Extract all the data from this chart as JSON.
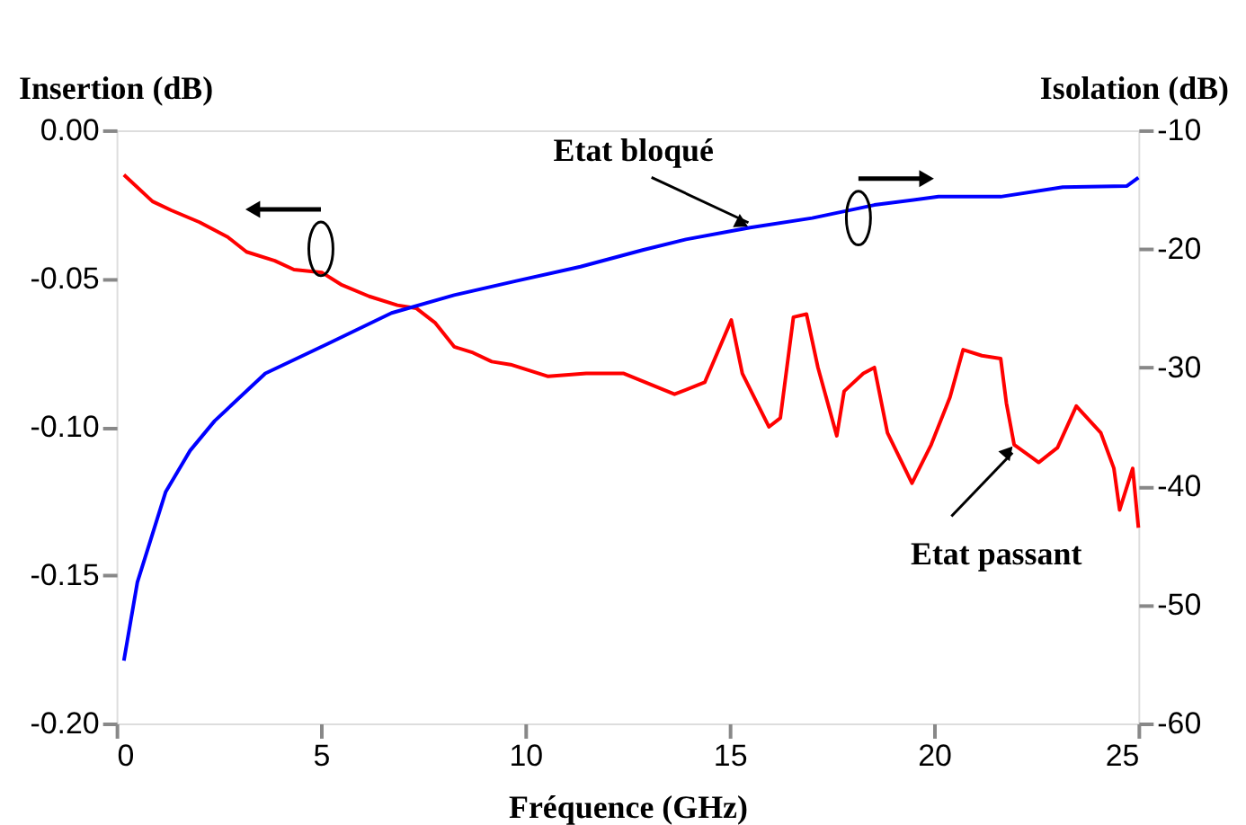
{
  "chart_data": {
    "type": "line",
    "xlabel": "Fréquence (GHz)",
    "ylabel": "Insertion (dB)",
    "y2label": "Isolation (dB)",
    "xlim": [
      0,
      25
    ],
    "xticks": [
      0,
      5,
      10,
      15,
      20,
      25
    ],
    "ylim": [
      -0.2,
      0.0
    ],
    "yticks": [
      {
        "value": 0.0,
        "label": "0.00"
      },
      {
        "value": -0.05,
        "label": "-0.05"
      },
      {
        "value": -0.1,
        "label": "-0.10"
      },
      {
        "value": -0.15,
        "label": "-0.15"
      },
      {
        "value": -0.2,
        "label": "-0.20"
      }
    ],
    "y2lim": [
      -60,
      -10
    ],
    "y2ticks": [
      -10,
      -20,
      -30,
      -40,
      -50,
      -60
    ],
    "grid": false,
    "series": [
      {
        "name": "Etat passant",
        "color": "#ff0000",
        "x": [
          0.18,
          0.88,
          1.34,
          2.03,
          2.72,
          3.18,
          3.87,
          4.34,
          5.03,
          5.49,
          6.18,
          6.87,
          7.33,
          7.8,
          8.26,
          8.72,
          9.18,
          9.64,
          10.56,
          11.49,
          12.41,
          13.65,
          14.39,
          15.04,
          15.31,
          15.96,
          16.24,
          16.56,
          16.88,
          17.16,
          17.62,
          17.8,
          18.27,
          18.54,
          18.86,
          19.46,
          19.93,
          20.39,
          20.71,
          21.17,
          21.63,
          21.77,
          21.96,
          22.56,
          23.02,
          23.48,
          24.08,
          24.4,
          24.54,
          24.86,
          25.0
        ],
        "values": [
          -0.015,
          -0.024,
          -0.027,
          -0.031,
          -0.036,
          -0.041,
          -0.044,
          -0.047,
          -0.048,
          -0.052,
          -0.056,
          -0.059,
          -0.06,
          -0.065,
          -0.073,
          -0.075,
          -0.078,
          -0.079,
          -0.083,
          -0.082,
          -0.082,
          -0.089,
          -0.085,
          -0.064,
          -0.082,
          -0.1,
          -0.097,
          -0.063,
          -0.062,
          -0.08,
          -0.103,
          -0.088,
          -0.082,
          -0.08,
          -0.102,
          -0.119,
          -0.106,
          -0.09,
          -0.074,
          -0.076,
          -0.077,
          -0.092,
          -0.106,
          -0.112,
          -0.107,
          -0.093,
          -0.102,
          -0.114,
          -0.128,
          -0.114,
          -0.134
        ]
      },
      {
        "name": "Etat bloqué",
        "color": "#0000ff",
        "axis": "y2",
        "x": [
          0.18,
          0.51,
          1.2,
          1.8,
          2.4,
          3.64,
          5.17,
          6.73,
          8.26,
          9.78,
          11.35,
          12.87,
          13.93,
          15.5,
          17.02,
          18.54,
          20.11,
          21.63,
          23.15,
          24.72,
          25.0
        ],
        "values": [
          -54.7,
          -48.1,
          -40.5,
          -37.0,
          -34.5,
          -30.5,
          -28.0,
          -25.4,
          -23.9,
          -22.7,
          -21.5,
          -20.1,
          -19.2,
          -18.2,
          -17.4,
          -16.3,
          -15.6,
          -15.6,
          -14.8,
          -14.7,
          -14.0
        ]
      }
    ]
  }
}
